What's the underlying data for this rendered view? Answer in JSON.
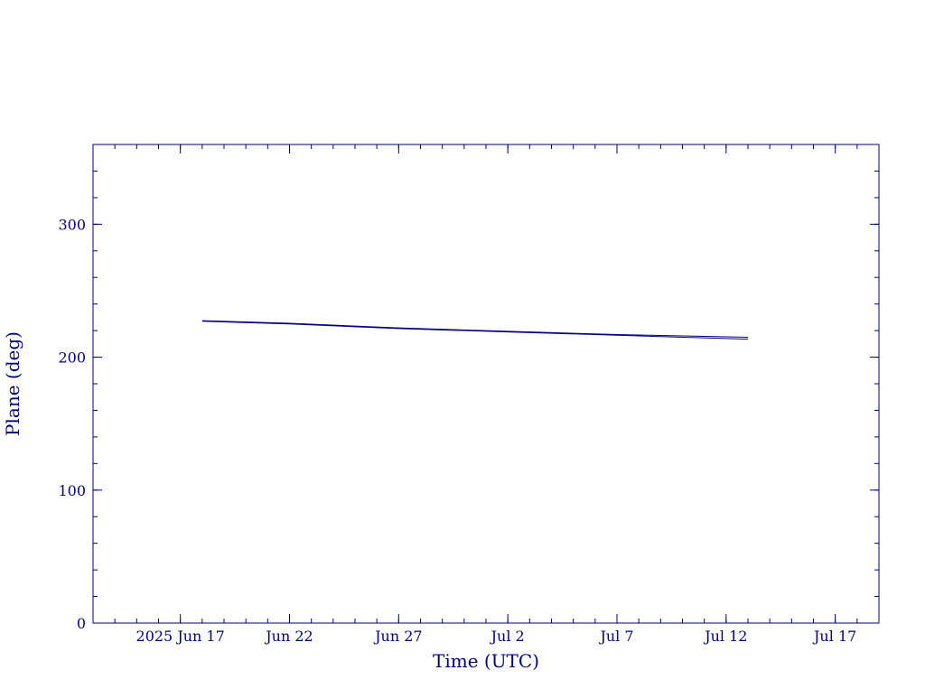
{
  "chart_data": {
    "type": "line",
    "title": "",
    "xlabel": "Time (UTC)",
    "ylabel": "Plane (deg)",
    "x_axis_type": "date",
    "xlim": [
      "2025-06-13",
      "2025-07-19"
    ],
    "ylim": [
      0,
      360
    ],
    "grid": false,
    "legend": "none",
    "x_ticks": [
      {
        "date": "2025-06-17",
        "label": "2025 Jun 17"
      },
      {
        "date": "2025-06-22",
        "label": "Jun 22"
      },
      {
        "date": "2025-06-27",
        "label": "Jun 27"
      },
      {
        "date": "2025-07-02",
        "label": "Jul  2"
      },
      {
        "date": "2025-07-07",
        "label": "Jul  7"
      },
      {
        "date": "2025-07-12",
        "label": "Jul 12"
      },
      {
        "date": "2025-07-17",
        "label": "Jul 17"
      }
    ],
    "y_ticks": [
      {
        "value": 0,
        "label": "0"
      },
      {
        "value": 100,
        "label": "100"
      },
      {
        "value": 200,
        "label": "200"
      },
      {
        "value": 300,
        "label": "300"
      }
    ],
    "series": [
      {
        "x": [
          "2025-06-18",
          "2025-06-22",
          "2025-06-27",
          "2025-07-02",
          "2025-07-07",
          "2025-07-10",
          "2025-07-13"
        ],
        "y": [
          227.5,
          225.5,
          222.0,
          219.5,
          217.0,
          216.0,
          215.0
        ],
        "color": "#00007f"
      },
      {
        "x": [
          "2025-06-18",
          "2025-06-22",
          "2025-06-27",
          "2025-07-02",
          "2025-07-07",
          "2025-07-10",
          "2025-07-13"
        ],
        "y": [
          227.0,
          225.0,
          221.5,
          219.0,
          216.5,
          215.0,
          213.5
        ],
        "color": "#00007f"
      }
    ],
    "colors": {
      "axis": "#00007f",
      "text": "#00007f",
      "background": "#ffffff"
    }
  }
}
